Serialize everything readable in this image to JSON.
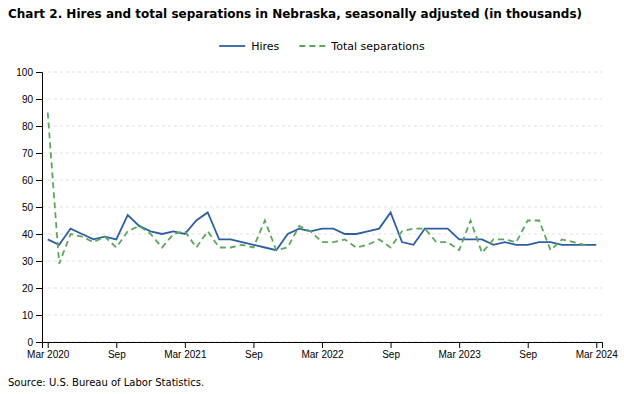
{
  "chart_data": {
    "type": "line",
    "title": "Chart 2. Hires and total separations in Nebraska, seasonally adjusted (in thousands)",
    "annotations": [
      "Source: U.S. Bureau of Labor Statistics."
    ],
    "categories": [
      "Mar 2020",
      null,
      null,
      null,
      null,
      null,
      "Sep",
      null,
      null,
      null,
      null,
      null,
      "Mar 2021",
      null,
      null,
      null,
      null,
      null,
      "Sep",
      null,
      null,
      null,
      null,
      null,
      "Mar 2022",
      null,
      null,
      null,
      null,
      null,
      "Sep",
      null,
      null,
      null,
      null,
      null,
      "Mar 2023",
      null,
      null,
      null,
      null,
      null,
      "Sep",
      null,
      null,
      null,
      null,
      null,
      "Mar 2024"
    ],
    "series": [
      {
        "name": "Hires",
        "color": "#2E5FA3",
        "line_style": "solid",
        "values": [
          38,
          36,
          42,
          40,
          38,
          39,
          38,
          47,
          43,
          41,
          40,
          41,
          40,
          45,
          48,
          38,
          38,
          37,
          36,
          35,
          34,
          40,
          42,
          41,
          42,
          42,
          40,
          40,
          41,
          42,
          48,
          37,
          36,
          42,
          42,
          42,
          38,
          38,
          38,
          36,
          37,
          36,
          36,
          37,
          37,
          36,
          36,
          36,
          36
        ]
      },
      {
        "name": "Total separations",
        "color": "#5BA85B",
        "line_style": "dashed",
        "values": [
          85,
          29,
          40,
          39,
          37,
          39,
          35,
          41,
          43,
          40,
          35,
          40,
          41,
          35,
          41,
          35,
          35,
          36,
          35,
          45,
          34,
          35,
          43,
          41,
          37,
          37,
          38,
          35,
          36,
          38,
          35,
          41,
          42,
          42,
          37,
          37,
          34,
          45,
          33,
          38,
          38,
          37,
          45,
          45,
          34,
          38,
          37,
          36,
          null
        ]
      }
    ],
    "ylim": [
      0,
      100
    ],
    "yticks": [
      0,
      10,
      20,
      30,
      40,
      50,
      60,
      70,
      80,
      90,
      100
    ],
    "grid": true,
    "legend": "top"
  }
}
